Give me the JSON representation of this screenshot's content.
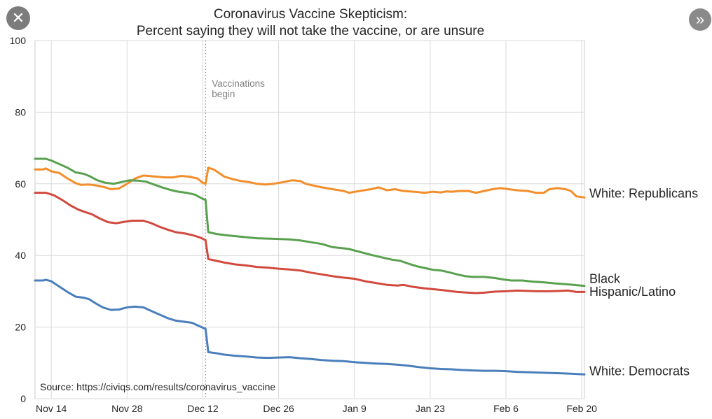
{
  "overlay": {
    "close_glyph": "✕",
    "next_glyph": "»"
  },
  "chart_data": {
    "type": "line",
    "title": "Coronavirus Vaccine Skepticism:",
    "subtitle": "Percent saying they will not take the vaccine, or are unsure",
    "xlabel": "",
    "ylabel": "",
    "x_unit": "days since Nov 14",
    "xlim": [
      -3,
      98.5
    ],
    "ylim": [
      0,
      100
    ],
    "grid": true,
    "x_ticks": [
      {
        "x": 0,
        "label": "Nov 14"
      },
      {
        "x": 14,
        "label": "Nov 28"
      },
      {
        "x": 28,
        "label": "Dec 12"
      },
      {
        "x": 42,
        "label": "Dec 26"
      },
      {
        "x": 56,
        "label": "Jan  9"
      },
      {
        "x": 70,
        "label": "Jan 23"
      },
      {
        "x": 84,
        "label": "Feb  6"
      },
      {
        "x": 98,
        "label": "Feb 20"
      }
    ],
    "y_ticks": [
      0,
      20,
      40,
      60,
      80,
      100
    ],
    "annotations": [
      {
        "type": "vline",
        "x": 28.5,
        "lines": [
          "Vaccinations",
          "begin"
        ],
        "color": "#999999"
      }
    ],
    "source": "Source: https://civiqs.com/results/coronavirus_vaccine",
    "series": [
      {
        "name": "White: Republicans",
        "color": "#f28e2b",
        "points": [
          [
            -3,
            64
          ],
          [
            -1.5,
            64
          ],
          [
            -1,
            64.3
          ],
          [
            0,
            63.5
          ],
          [
            1.5,
            63
          ],
          [
            3,
            61.5
          ],
          [
            4.5,
            60.2
          ],
          [
            5.5,
            59.7
          ],
          [
            7,
            59.8
          ],
          [
            8.5,
            59.5
          ],
          [
            10,
            59
          ],
          [
            11,
            58.5
          ],
          [
            12.5,
            58.7
          ],
          [
            14,
            60
          ],
          [
            15.5,
            61.5
          ],
          [
            17,
            62.3
          ],
          [
            18,
            62.2
          ],
          [
            19.5,
            62
          ],
          [
            21,
            61.8
          ],
          [
            22.5,
            61.8
          ],
          [
            24,
            62.2
          ],
          [
            25.5,
            62
          ],
          [
            27,
            61.5
          ],
          [
            28,
            60.3
          ],
          [
            28.5,
            60
          ],
          [
            29,
            64.5
          ],
          [
            30,
            64
          ],
          [
            31,
            63
          ],
          [
            32,
            62
          ],
          [
            33.5,
            61.3
          ],
          [
            35,
            60.8
          ],
          [
            36.5,
            60.5
          ],
          [
            38,
            60
          ],
          [
            39.5,
            59.8
          ],
          [
            41,
            60
          ],
          [
            43,
            60.5
          ],
          [
            44.5,
            61
          ],
          [
            46,
            60.8
          ],
          [
            47,
            60
          ],
          [
            48.5,
            59.5
          ],
          [
            50,
            59
          ],
          [
            52,
            58.5
          ],
          [
            54,
            58
          ],
          [
            55,
            57.5
          ],
          [
            57,
            58
          ],
          [
            59,
            58.5
          ],
          [
            60.5,
            59
          ],
          [
            62,
            58.2
          ],
          [
            63.5,
            58.5
          ],
          [
            65,
            58
          ],
          [
            67,
            57.8
          ],
          [
            69,
            57.5
          ],
          [
            70.5,
            57.8
          ],
          [
            72,
            57.6
          ],
          [
            73,
            57.9
          ],
          [
            74,
            57.8
          ],
          [
            75.5,
            58
          ],
          [
            77,
            58
          ],
          [
            78.5,
            57.5
          ],
          [
            80,
            58
          ],
          [
            81.5,
            58.5
          ],
          [
            83,
            58.8
          ],
          [
            84.5,
            58.5
          ],
          [
            86,
            58.2
          ],
          [
            88,
            58
          ],
          [
            89.5,
            57.5
          ],
          [
            91,
            57.5
          ],
          [
            92,
            58.5
          ],
          [
            93.5,
            58.8
          ],
          [
            95,
            58.5
          ],
          [
            96,
            58
          ],
          [
            97,
            56.5
          ],
          [
            98.5,
            56.2
          ]
        ]
      },
      {
        "name": "Black",
        "color": "#59a14f",
        "points": [
          [
            -3,
            67
          ],
          [
            -1,
            67
          ],
          [
            0,
            66.5
          ],
          [
            1.5,
            65.5
          ],
          [
            3,
            64.5
          ],
          [
            4.5,
            63.2
          ],
          [
            6,
            62.8
          ],
          [
            7,
            62.2
          ],
          [
            8.5,
            61
          ],
          [
            10,
            60.3
          ],
          [
            11.5,
            60
          ],
          [
            13,
            60.5
          ],
          [
            14.5,
            61
          ],
          [
            16,
            60.9
          ],
          [
            17.5,
            60.6
          ],
          [
            19,
            59.8
          ],
          [
            20.5,
            59
          ],
          [
            22,
            58.3
          ],
          [
            23.5,
            57.8
          ],
          [
            25,
            57.5
          ],
          [
            26.5,
            57
          ],
          [
            28,
            55.8
          ],
          [
            28.5,
            55.5
          ],
          [
            29,
            46.5
          ],
          [
            30.5,
            46
          ],
          [
            32,
            45.7
          ],
          [
            34,
            45.4
          ],
          [
            36,
            45.1
          ],
          [
            38,
            44.8
          ],
          [
            40,
            44.7
          ],
          [
            42,
            44.6
          ],
          [
            44,
            44.5
          ],
          [
            46,
            44.2
          ],
          [
            48,
            43.7
          ],
          [
            50,
            43.2
          ],
          [
            52,
            42.3
          ],
          [
            54,
            42
          ],
          [
            55,
            41.8
          ],
          [
            57,
            41
          ],
          [
            59,
            40.2
          ],
          [
            61,
            39.5
          ],
          [
            63,
            38.8
          ],
          [
            64.5,
            38.5
          ],
          [
            66,
            37.7
          ],
          [
            67.5,
            37
          ],
          [
            69,
            36.5
          ],
          [
            70.5,
            36
          ],
          [
            72,
            35.8
          ],
          [
            73.5,
            35.3
          ],
          [
            75,
            34.7
          ],
          [
            76.5,
            34.2
          ],
          [
            78,
            34
          ],
          [
            80,
            34
          ],
          [
            82,
            33.7
          ],
          [
            83.5,
            33.3
          ],
          [
            85,
            33
          ],
          [
            87,
            33
          ],
          [
            89,
            32.7
          ],
          [
            91,
            32.5
          ],
          [
            93,
            32.2
          ],
          [
            95,
            32
          ],
          [
            96.5,
            31.8
          ],
          [
            98.5,
            31.5
          ]
        ]
      },
      {
        "name": "Hispanic/Latino",
        "color": "#d14a3d",
        "points": [
          [
            -3,
            57.5
          ],
          [
            -1,
            57.5
          ],
          [
            0.5,
            56.8
          ],
          [
            2,
            55.5
          ],
          [
            3.5,
            54
          ],
          [
            5,
            52.8
          ],
          [
            6.5,
            52
          ],
          [
            7.5,
            51.5
          ],
          [
            9,
            50.3
          ],
          [
            10.5,
            49.3
          ],
          [
            12,
            49
          ],
          [
            13.5,
            49.4
          ],
          [
            15,
            49.7
          ],
          [
            17,
            49.7
          ],
          [
            18.5,
            49
          ],
          [
            20,
            48
          ],
          [
            21.5,
            47.2
          ],
          [
            23,
            46.5
          ],
          [
            24.5,
            46.2
          ],
          [
            26,
            45.7
          ],
          [
            27.5,
            45
          ],
          [
            28.5,
            44.3
          ],
          [
            29,
            39
          ],
          [
            30.5,
            38.5
          ],
          [
            32,
            38
          ],
          [
            34,
            37.5
          ],
          [
            36,
            37.2
          ],
          [
            38,
            36.8
          ],
          [
            40,
            36.6
          ],
          [
            42,
            36.3
          ],
          [
            44,
            36.1
          ],
          [
            46,
            35.8
          ],
          [
            48,
            35.2
          ],
          [
            50,
            34.7
          ],
          [
            52,
            34.2
          ],
          [
            54,
            33.8
          ],
          [
            56,
            33.5
          ],
          [
            58,
            32.8
          ],
          [
            60,
            32.3
          ],
          [
            62,
            31.8
          ],
          [
            64,
            31.6
          ],
          [
            65,
            31.8
          ],
          [
            67,
            31.2
          ],
          [
            69,
            30.8
          ],
          [
            71,
            30.5
          ],
          [
            73,
            30.2
          ],
          [
            75,
            29.8
          ],
          [
            77,
            29.6
          ],
          [
            78.5,
            29.5
          ],
          [
            80,
            29.6
          ],
          [
            82,
            29.9
          ],
          [
            84,
            30
          ],
          [
            86,
            30.2
          ],
          [
            88,
            30.1
          ],
          [
            90,
            30
          ],
          [
            92,
            30
          ],
          [
            94,
            30.1
          ],
          [
            95.5,
            30.2
          ],
          [
            97,
            29.8
          ],
          [
            98.5,
            29.8
          ]
        ]
      },
      {
        "name": "White: Democrats",
        "color": "#4a7fbb",
        "points": [
          [
            -3,
            33
          ],
          [
            -1.5,
            33
          ],
          [
            -1,
            33.2
          ],
          [
            0,
            32.8
          ],
          [
            1,
            31.8
          ],
          [
            2,
            30.8
          ],
          [
            3,
            29.8
          ],
          [
            4.5,
            28.5
          ],
          [
            6,
            28.2
          ],
          [
            7,
            27.8
          ],
          [
            8,
            26.8
          ],
          [
            9.5,
            25.5
          ],
          [
            11,
            24.8
          ],
          [
            12.5,
            24.9
          ],
          [
            14,
            25.5
          ],
          [
            15.5,
            25.7
          ],
          [
            17,
            25.5
          ],
          [
            18.5,
            24.5
          ],
          [
            20,
            23.5
          ],
          [
            21.5,
            22.5
          ],
          [
            23,
            21.8
          ],
          [
            24.5,
            21.5
          ],
          [
            26,
            21.2
          ],
          [
            27,
            20.5
          ],
          [
            28.5,
            19.5
          ],
          [
            29,
            13
          ],
          [
            30.5,
            12.7
          ],
          [
            32,
            12.3
          ],
          [
            34,
            12
          ],
          [
            36,
            11.8
          ],
          [
            38,
            11.5
          ],
          [
            40,
            11.4
          ],
          [
            42,
            11.5
          ],
          [
            44,
            11.6
          ],
          [
            46,
            11.3
          ],
          [
            48,
            11.1
          ],
          [
            50,
            10.8
          ],
          [
            52,
            10.6
          ],
          [
            54,
            10.5
          ],
          [
            56,
            10.2
          ],
          [
            58,
            10
          ],
          [
            60,
            9.8
          ],
          [
            62,
            9.7
          ],
          [
            64,
            9.5
          ],
          [
            66,
            9.2
          ],
          [
            68,
            8.8
          ],
          [
            70,
            8.5
          ],
          [
            72,
            8.3
          ],
          [
            74,
            8.2
          ],
          [
            76,
            8
          ],
          [
            78,
            7.9
          ],
          [
            80,
            7.8
          ],
          [
            82,
            7.8
          ],
          [
            84,
            7.7
          ],
          [
            86,
            7.5
          ],
          [
            88,
            7.4
          ],
          [
            90,
            7.3
          ],
          [
            92,
            7.2
          ],
          [
            94,
            7.1
          ],
          [
            96,
            7
          ],
          [
            98.5,
            6.8
          ]
        ]
      }
    ],
    "series_labels": [
      {
        "series": "White: Republicans",
        "text": "White: Republicans",
        "y": 56.2
      },
      {
        "series": "Black",
        "text": "Black",
        "y": 32.3
      },
      {
        "series": "Hispanic/Latino",
        "text": "Hispanic/Latino",
        "y": 28.7
      },
      {
        "series": "White: Democrats",
        "text": "White: Democrats",
        "y": 6.5
      }
    ]
  }
}
